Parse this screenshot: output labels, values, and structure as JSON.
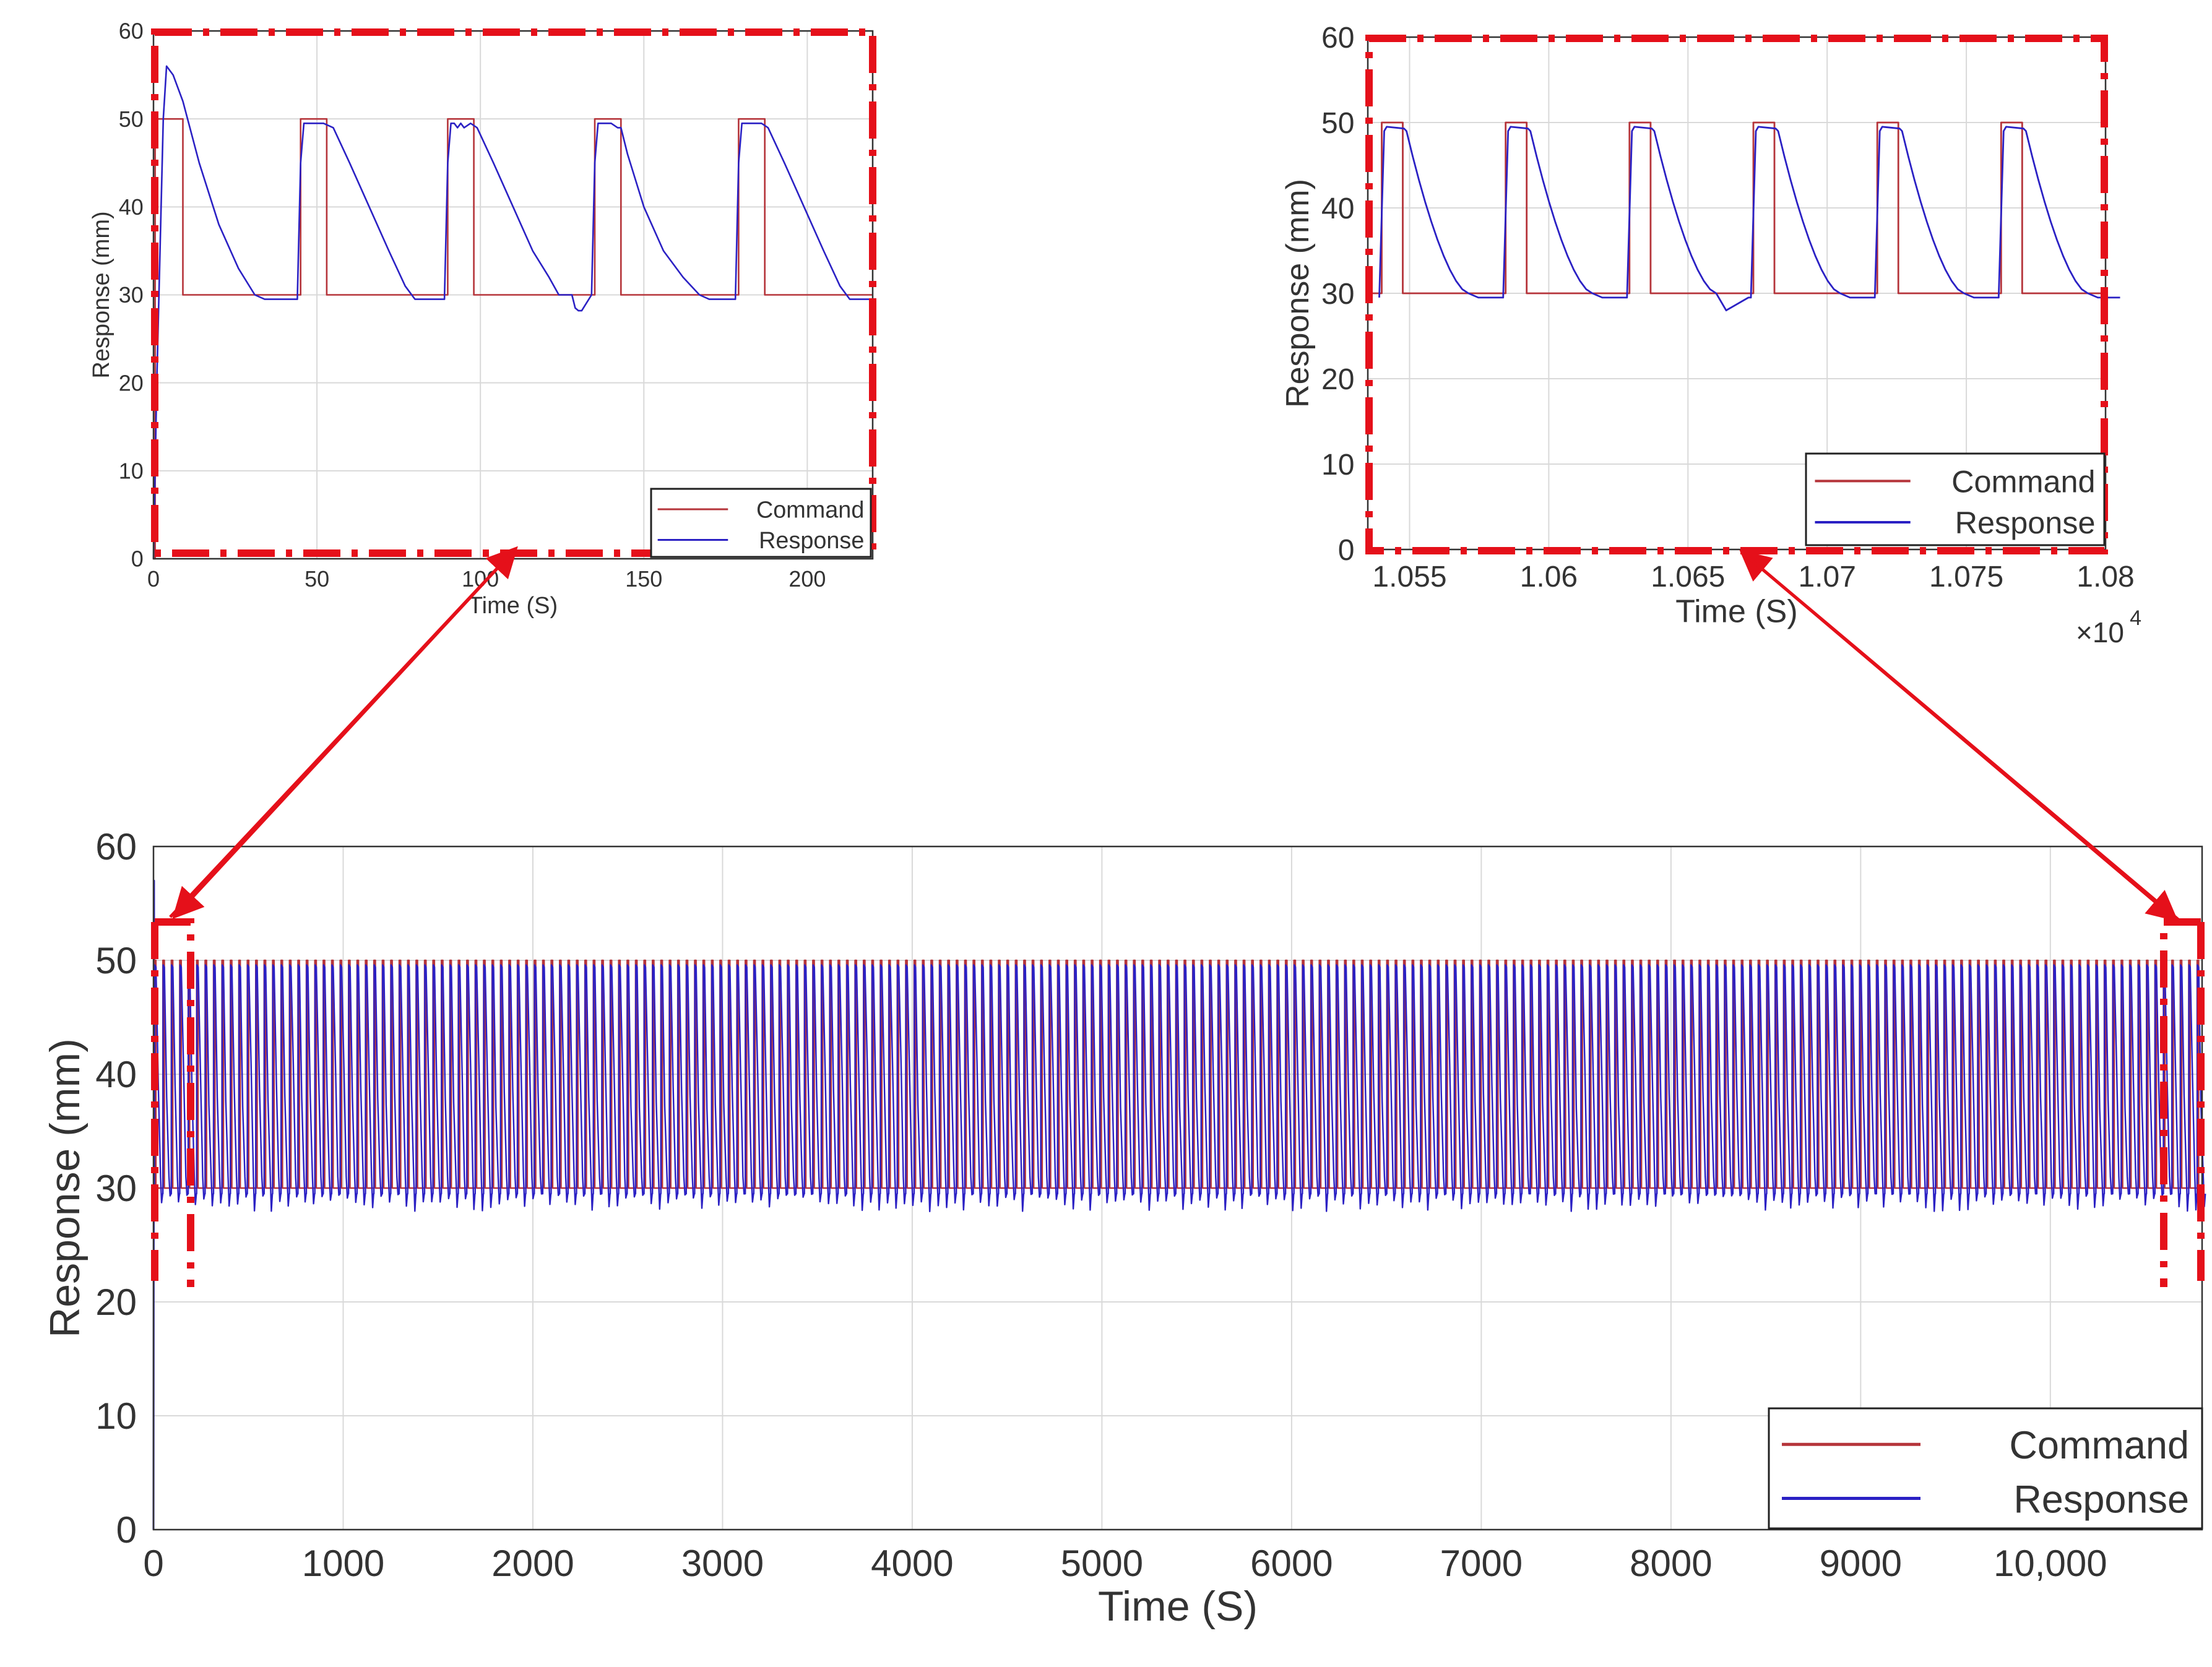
{
  "colors": {
    "command": "#b5343a",
    "response": "#2b21c4",
    "highlight": "#e5101a",
    "grid": "#d9d9d9",
    "axis": "#333333",
    "text": "#333333"
  },
  "chart_data": [
    {
      "id": "zoom_start",
      "type": "line",
      "title": "",
      "xlabel": "Time (S)",
      "ylabel": "Response (mm)",
      "xlim": [
        0,
        220
      ],
      "ylim": [
        0,
        60
      ],
      "xticks": [
        0,
        50,
        100,
        150,
        200
      ],
      "xtick_labels": [
        "0",
        "50",
        "100",
        "150",
        "200"
      ],
      "yticks": [
        0,
        10,
        20,
        30,
        40,
        50,
        60
      ],
      "ytick_labels": [
        "0",
        "10",
        "20",
        "30",
        "40",
        "50",
        "60"
      ],
      "grid": true,
      "legend": "bottom-right",
      "series": [
        {
          "name": "Command",
          "color_key": "command",
          "x": [
            0,
            0.5,
            0.5,
            9,
            9,
            45,
            45,
            53,
            53,
            90,
            90,
            98,
            98,
            135,
            135,
            143,
            143,
            179,
            179,
            187,
            187,
            220
          ],
          "y": [
            0,
            0,
            50,
            50,
            30,
            30,
            50,
            50,
            30,
            30,
            50,
            50,
            30,
            30,
            50,
            50,
            30,
            30,
            50,
            50,
            30,
            30
          ]
        },
        {
          "name": "Response",
          "color_key": "response",
          "x": [
            0,
            1,
            3,
            4,
            6,
            9,
            14,
            20,
            26,
            31,
            34,
            44,
            45,
            46,
            52,
            55,
            60,
            66,
            72,
            77,
            80,
            89,
            90,
            91,
            92,
            93,
            94,
            95,
            97,
            99,
            104,
            110,
            116,
            121,
            124,
            128,
            129,
            130,
            131,
            134,
            135,
            136,
            140,
            142,
            143,
            145,
            150,
            156,
            162,
            167,
            170,
            178,
            179,
            180,
            186,
            188,
            193,
            199,
            205,
            210,
            213,
            220
          ],
          "y": [
            0,
            20,
            50,
            56,
            55,
            52,
            45,
            38,
            33,
            30,
            29.5,
            29.5,
            45,
            49.5,
            49.5,
            49,
            45,
            40,
            35,
            31,
            29.5,
            29.5,
            45,
            49.5,
            49.5,
            49,
            49.5,
            49,
            49.5,
            49,
            45,
            40,
            35,
            32,
            30,
            30,
            28.5,
            28.2,
            28.2,
            30,
            45,
            49.5,
            49.5,
            49,
            49,
            46,
            40,
            35,
            32,
            30,
            29.5,
            29.5,
            45,
            49.5,
            49.5,
            49,
            45,
            40,
            35,
            31,
            29.5,
            29.5
          ]
        }
      ]
    },
    {
      "id": "zoom_end",
      "type": "line",
      "title": "",
      "xlabel": "Time (S)",
      "ylabel": "Response (mm)",
      "x_multiplier_label": "×10",
      "x_multiplier_exp": "4",
      "xlim": [
        1.0535,
        1.08
      ],
      "ylim": [
        0,
        60
      ],
      "xticks": [
        1.055,
        1.06,
        1.065,
        1.07,
        1.075,
        1.08
      ],
      "xtick_labels": [
        "1.055",
        "1.06",
        "1.065",
        "1.07",
        "1.075",
        "1.08"
      ],
      "yticks": [
        0,
        10,
        20,
        30,
        40,
        50,
        60
      ],
      "ytick_labels": [
        "0",
        "10",
        "20",
        "30",
        "40",
        "50",
        "60"
      ],
      "grid": true,
      "legend": "bottom-right",
      "period": 0.00445,
      "cycle_starts": [
        1.054,
        1.05845,
        1.0629,
        1.06735,
        1.0718,
        1.07625
      ],
      "cycle_amplitude_high": 50,
      "cycle_amplitude_low": 30,
      "series": [
        {
          "name": "Command",
          "color_key": "command"
        },
        {
          "name": "Response",
          "color_key": "response"
        }
      ]
    },
    {
      "id": "full_run",
      "type": "line",
      "title": "",
      "xlabel": "Time (S)",
      "ylabel": "Response (mm)",
      "xlim": [
        0,
        10800
      ],
      "ylim": [
        0,
        60
      ],
      "xticks": [
        0,
        1000,
        2000,
        3000,
        4000,
        5000,
        6000,
        7000,
        8000,
        9000,
        10000
      ],
      "xtick_labels": [
        "0",
        "1000",
        "2000",
        "3000",
        "4000",
        "5000",
        "6000",
        "7000",
        "8000",
        "9000",
        "10,000"
      ],
      "yticks": [
        0,
        10,
        20,
        30,
        40,
        50,
        60
      ],
      "ytick_labels": [
        "0",
        "10",
        "20",
        "30",
        "40",
        "50",
        "60"
      ],
      "grid": true,
      "legend": "bottom-right",
      "period": 44.5,
      "command_high": 50,
      "command_low": 30,
      "response_peak": 57,
      "series": [
        {
          "name": "Command",
          "color_key": "command"
        },
        {
          "name": "Response",
          "color_key": "response"
        }
      ]
    }
  ]
}
